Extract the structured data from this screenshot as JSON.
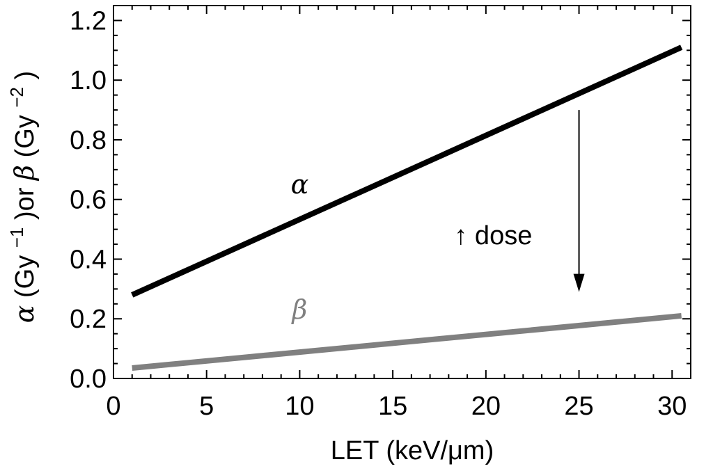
{
  "chart_data": {
    "type": "line",
    "xlabel": "LET (keV/μm)",
    "ylabel": {
      "alpha_symbol": "α",
      "alpha_unit": " (Gy",
      "alpha_exp": "−1",
      "or_text": ")or ",
      "beta_symbol": "β",
      "beta_unit": " (Gy",
      "beta_exp": "−2",
      "close": ")"
    },
    "xlim": [
      0,
      31
    ],
    "ylim": [
      0,
      1.25
    ],
    "x_ticks": [
      "0",
      "5",
      "10",
      "15",
      "20",
      "25",
      "30"
    ],
    "y_ticks": [
      "0.0",
      "0.2",
      "0.4",
      "0.6",
      "0.8",
      "1.0",
      "1.2"
    ],
    "series": [
      {
        "name": "α",
        "color": "#000000",
        "x": [
          1,
          30.5
        ],
        "y": [
          0.28,
          1.11
        ],
        "label_at": [
          10,
          0.62
        ]
      },
      {
        "name": "β",
        "color": "#808080",
        "x": [
          1,
          30.5
        ],
        "y": [
          0.035,
          0.21
        ],
        "label_at": [
          10,
          0.2
        ]
      }
    ],
    "annotations": [
      {
        "text": "↑ dose",
        "arrow_x": 25,
        "arrow_from": 0.9,
        "arrow_to": 0.29,
        "text_at": [
          18.3,
          0.45
        ]
      }
    ],
    "grid": false,
    "legend": "none"
  }
}
